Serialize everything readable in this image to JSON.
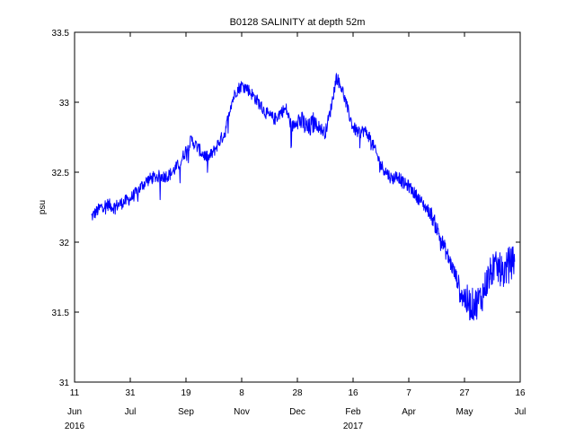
{
  "chart_data": {
    "type": "line",
    "title": "B0128 SALINITY at depth 52m",
    "xlabel": "",
    "ylabel": "psu",
    "ylim": [
      31,
      33.5
    ],
    "yticks": [
      31,
      31.5,
      32,
      32.5,
      33,
      33.5
    ],
    "ytick_labels": [
      "31",
      "31.5",
      "32",
      "32.5",
      "33",
      "33.5"
    ],
    "xlim": [
      "2016-06-11",
      "2017-07-16"
    ],
    "xticks": [
      {
        "date": "2016-06-11",
        "day": "11",
        "month": "Jun",
        "year": "2016"
      },
      {
        "date": "2016-07-31",
        "day": "31",
        "month": "Jul",
        "year": ""
      },
      {
        "date": "2016-09-19",
        "day": "19",
        "month": "Sep",
        "year": ""
      },
      {
        "date": "2016-11-08",
        "day": "8",
        "month": "Nov",
        "year": ""
      },
      {
        "date": "2016-12-28",
        "day": "28",
        "month": "Dec",
        "year": ""
      },
      {
        "date": "2017-02-16",
        "day": "16",
        "month": "Feb",
        "year": "2017"
      },
      {
        "date": "2017-04-07",
        "day": "7",
        "month": "Apr",
        "year": ""
      },
      {
        "date": "2017-05-27",
        "day": "27",
        "month": "May",
        "year": ""
      },
      {
        "date": "2017-07-16",
        "day": "16",
        "month": "Jul",
        "year": ""
      }
    ],
    "grid": false,
    "line_color": "#0000ff",
    "series": [
      {
        "x": [
          "2016-06-26",
          "2016-07-01",
          "2016-07-06",
          "2016-07-11",
          "2016-07-16",
          "2016-07-21",
          "2016-07-26",
          "2016-07-31",
          "2016-08-05",
          "2016-08-10",
          "2016-08-15",
          "2016-08-20",
          "2016-08-25",
          "2016-08-30",
          "2016-09-04",
          "2016-09-09",
          "2016-09-14",
          "2016-09-19",
          "2016-09-24",
          "2016-09-29",
          "2016-10-04",
          "2016-10-09",
          "2016-10-14",
          "2016-10-19",
          "2016-10-24",
          "2016-10-29",
          "2016-11-03",
          "2016-11-08",
          "2016-11-13",
          "2016-11-18",
          "2016-11-23",
          "2016-11-28",
          "2016-12-03",
          "2016-12-08",
          "2016-12-13",
          "2016-12-18",
          "2016-12-23",
          "2016-12-28",
          "2017-01-02",
          "2017-01-07",
          "2017-01-12",
          "2017-01-17",
          "2017-01-22",
          "2017-01-27",
          "2017-02-01",
          "2017-02-06",
          "2017-02-11",
          "2017-02-16",
          "2017-02-21",
          "2017-02-26",
          "2017-03-03",
          "2017-03-08",
          "2017-03-13",
          "2017-03-18",
          "2017-03-23",
          "2017-03-28",
          "2017-04-02",
          "2017-04-07",
          "2017-04-12",
          "2017-04-17",
          "2017-04-22",
          "2017-04-27",
          "2017-05-02",
          "2017-05-07",
          "2017-05-12",
          "2017-05-17",
          "2017-05-22",
          "2017-05-27",
          "2017-06-01",
          "2017-06-06",
          "2017-06-11",
          "2017-06-16",
          "2017-06-21",
          "2017-06-26",
          "2017-07-01",
          "2017-07-06",
          "2017-07-11"
        ],
        "y": [
          32.18,
          32.22,
          32.26,
          32.27,
          32.25,
          32.27,
          32.29,
          32.31,
          32.35,
          32.4,
          32.44,
          32.46,
          32.47,
          32.47,
          32.48,
          32.52,
          32.57,
          32.66,
          32.73,
          32.68,
          32.63,
          32.6,
          32.65,
          32.72,
          32.78,
          32.98,
          33.08,
          33.12,
          33.1,
          33.05,
          33.0,
          32.94,
          32.9,
          32.88,
          32.93,
          32.95,
          32.82,
          32.88,
          32.85,
          32.8,
          32.86,
          32.82,
          32.78,
          32.95,
          33.18,
          33.1,
          32.95,
          32.82,
          32.78,
          32.8,
          32.75,
          32.65,
          32.55,
          32.5,
          32.45,
          32.48,
          32.42,
          32.4,
          32.35,
          32.3,
          32.25,
          32.2,
          32.1,
          32.0,
          31.9,
          31.8,
          31.7,
          31.6,
          31.55,
          31.56,
          31.6,
          31.72,
          31.8,
          31.82,
          31.78,
          31.85,
          31.86
        ]
      }
    ]
  }
}
